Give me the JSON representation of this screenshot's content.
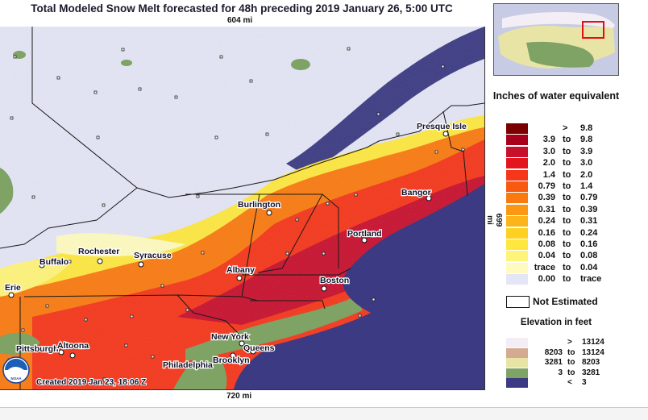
{
  "title": "Total Modeled Snow Melt forecasted for 48h preceding 2019 January 26, 5:00 UTC",
  "map": {
    "width_label": "604 mi",
    "bottom_label": "720 mi",
    "height_label": "699 mi",
    "created_label": "Created 2019 Jan 23, 18:06 Z",
    "logo_text": "NOAA",
    "cities": [
      {
        "name": "Presque Isle",
        "data_name": "city-presque-isle"
      },
      {
        "name": "Burlington",
        "data_name": "city-burlington"
      },
      {
        "name": "Bangor",
        "data_name": "city-bangor"
      },
      {
        "name": "Portland",
        "data_name": "city-portland"
      },
      {
        "name": "Rochester",
        "data_name": "city-rochester"
      },
      {
        "name": "Syracuse",
        "data_name": "city-syracuse"
      },
      {
        "name": "Buffalo",
        "data_name": "city-buffalo"
      },
      {
        "name": "Albany",
        "data_name": "city-albany"
      },
      {
        "name": "Boston",
        "data_name": "city-boston"
      },
      {
        "name": "Erie",
        "data_name": "city-erie"
      },
      {
        "name": "New York",
        "data_name": "city-new-york"
      },
      {
        "name": "Queens",
        "data_name": "city-queens"
      },
      {
        "name": "Brooklyn",
        "data_name": "city-brooklyn"
      },
      {
        "name": "Pittsburgh",
        "data_name": "city-pittsburgh"
      },
      {
        "name": "Altoona",
        "data_name": "city-altoona"
      },
      {
        "name": "Philadelphia",
        "data_name": "city-philadelphia"
      }
    ]
  },
  "legend": {
    "title": "Inches of water equivalent",
    "rows": [
      {
        "color": "#7a0000",
        "lo": "",
        "to": ">",
        "hi": "9.8"
      },
      {
        "color": "#a8001a",
        "lo": "3.9",
        "to": "to",
        "hi": "9.8"
      },
      {
        "color": "#c8102e",
        "lo": "3.0",
        "to": "to",
        "hi": "3.9"
      },
      {
        "color": "#e3141e",
        "lo": "2.0",
        "to": "to",
        "hi": "3.0"
      },
      {
        "color": "#f5361a",
        "lo": "1.4",
        "to": "to",
        "hi": "2.0"
      },
      {
        "color": "#f85a12",
        "lo": "0.79",
        "to": "to",
        "hi": "1.4"
      },
      {
        "color": "#fa7a10",
        "lo": "0.39",
        "to": "to",
        "hi": "0.79"
      },
      {
        "color": "#fb9712",
        "lo": "0.31",
        "to": "to",
        "hi": "0.39"
      },
      {
        "color": "#fcb418",
        "lo": "0.24",
        "to": "to",
        "hi": "0.31"
      },
      {
        "color": "#fdd022",
        "lo": "0.16",
        "to": "to",
        "hi": "0.24"
      },
      {
        "color": "#fee840",
        "lo": "0.08",
        "to": "to",
        "hi": "0.16"
      },
      {
        "color": "#fff47a",
        "lo": "0.04",
        "to": "to",
        "hi": "0.08"
      },
      {
        "color": "#fffbc0",
        "lo": "trace",
        "to": "to",
        "hi": "0.04"
      },
      {
        "color": "#e4e6f6",
        "lo": "0.00",
        "to": "to",
        "hi": "trace"
      }
    ],
    "not_estimated": "Not Estimated",
    "elevation_title": "Elevation in feet",
    "elevation_rows": [
      {
        "color": "#f3eef6",
        "lo": "",
        "to": ">",
        "hi": "13124"
      },
      {
        "color": "#d4ab90",
        "lo": "8203",
        "to": "to",
        "hi": "13124"
      },
      {
        "color": "#e8e4a6",
        "lo": "3281",
        "to": "to",
        "hi": "8203"
      },
      {
        "color": "#7fa265",
        "lo": "3",
        "to": "to",
        "hi": "3281"
      },
      {
        "color": "#3b3a83",
        "lo": "",
        "to": "<",
        "hi": "3"
      }
    ]
  }
}
